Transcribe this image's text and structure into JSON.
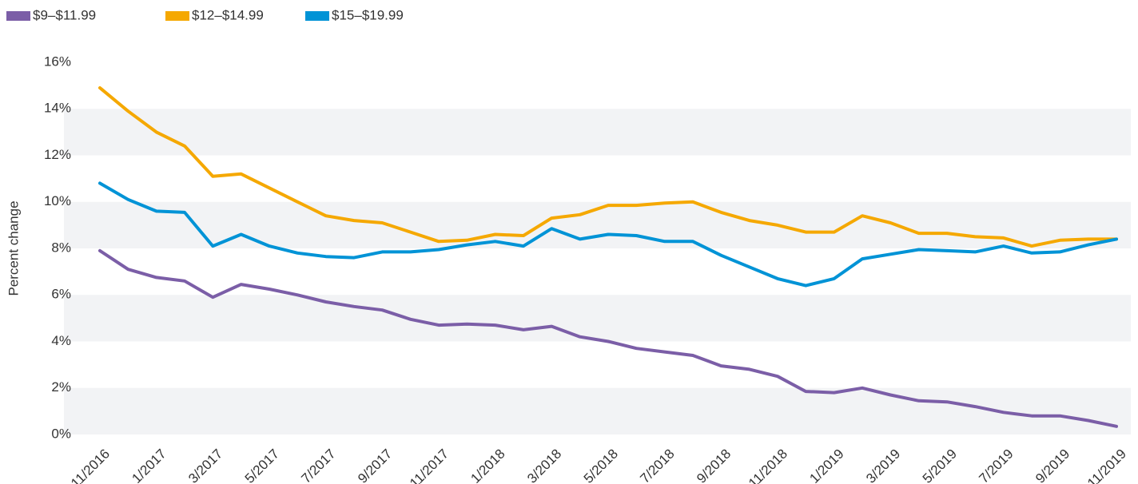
{
  "chart_data": {
    "type": "line",
    "y_label": "Percent change",
    "categories": [
      "11/2016",
      null,
      "1/2017",
      null,
      "3/2017",
      null,
      "5/2017",
      null,
      "7/2017",
      null,
      "9/2017",
      null,
      "11/2017",
      null,
      "1/2018",
      null,
      "3/2018",
      null,
      "5/2018",
      null,
      "7/2018",
      null,
      "9/2018",
      null,
      "11/2018",
      null,
      "1/2019",
      null,
      "3/2019",
      null,
      "5/2019",
      null,
      "7/2019",
      null,
      "9/2019",
      null,
      "11/2019"
    ],
    "series": [
      {
        "name": "$9–$11.99",
        "color": "#7b5ea7",
        "values": [
          7.9,
          7.1,
          6.75,
          6.6,
          5.9,
          6.45,
          6.25,
          6.0,
          5.7,
          5.5,
          5.35,
          4.95,
          4.7,
          4.75,
          4.7,
          4.5,
          4.65,
          4.2,
          4.0,
          3.7,
          3.55,
          3.4,
          2.95,
          2.8,
          2.5,
          1.85,
          1.8,
          2.0,
          1.7,
          1.45,
          1.4,
          1.2,
          0.95,
          0.8,
          0.8,
          0.6,
          0.35
        ]
      },
      {
        "name": "$12–$14.99",
        "color": "#f5a800",
        "values": [
          14.9,
          13.9,
          13.0,
          12.4,
          11.1,
          11.2,
          10.6,
          10.0,
          9.4,
          9.2,
          9.1,
          8.7,
          8.3,
          8.35,
          8.6,
          8.55,
          9.3,
          9.45,
          9.85,
          9.85,
          9.95,
          10.0,
          9.55,
          9.2,
          9.0,
          8.7,
          8.7,
          9.4,
          9.1,
          8.65,
          8.65,
          8.5,
          8.45,
          8.1,
          8.35,
          8.4,
          8.4
        ]
      },
      {
        "name": "$15–$19.99",
        "color": "#0093d6",
        "values": [
          10.8,
          10.1,
          9.6,
          9.55,
          8.1,
          8.6,
          8.1,
          7.8,
          7.65,
          7.6,
          7.85,
          7.85,
          7.95,
          8.15,
          8.3,
          8.1,
          8.85,
          8.4,
          8.6,
          8.55,
          8.3,
          8.3,
          7.7,
          7.2,
          6.7,
          6.4,
          6.7,
          7.55,
          7.75,
          7.95,
          7.9,
          7.85,
          8.1,
          7.8,
          7.85,
          8.15,
          8.4
        ]
      }
    ],
    "ylim": [
      0,
      16
    ],
    "yticks": [
      {
        "value": 0,
        "label": "0%"
      },
      {
        "value": 2,
        "label": "2%"
      },
      {
        "value": 4,
        "label": "4%"
      },
      {
        "value": 6,
        "label": "6%"
      },
      {
        "value": 8,
        "label": "8%"
      },
      {
        "value": 10,
        "label": "10%"
      },
      {
        "value": 12,
        "label": "12%"
      },
      {
        "value": 14,
        "label": "14%"
      },
      {
        "value": 16,
        "label": "16%"
      }
    ],
    "grid": true,
    "legend": "top-left"
  }
}
